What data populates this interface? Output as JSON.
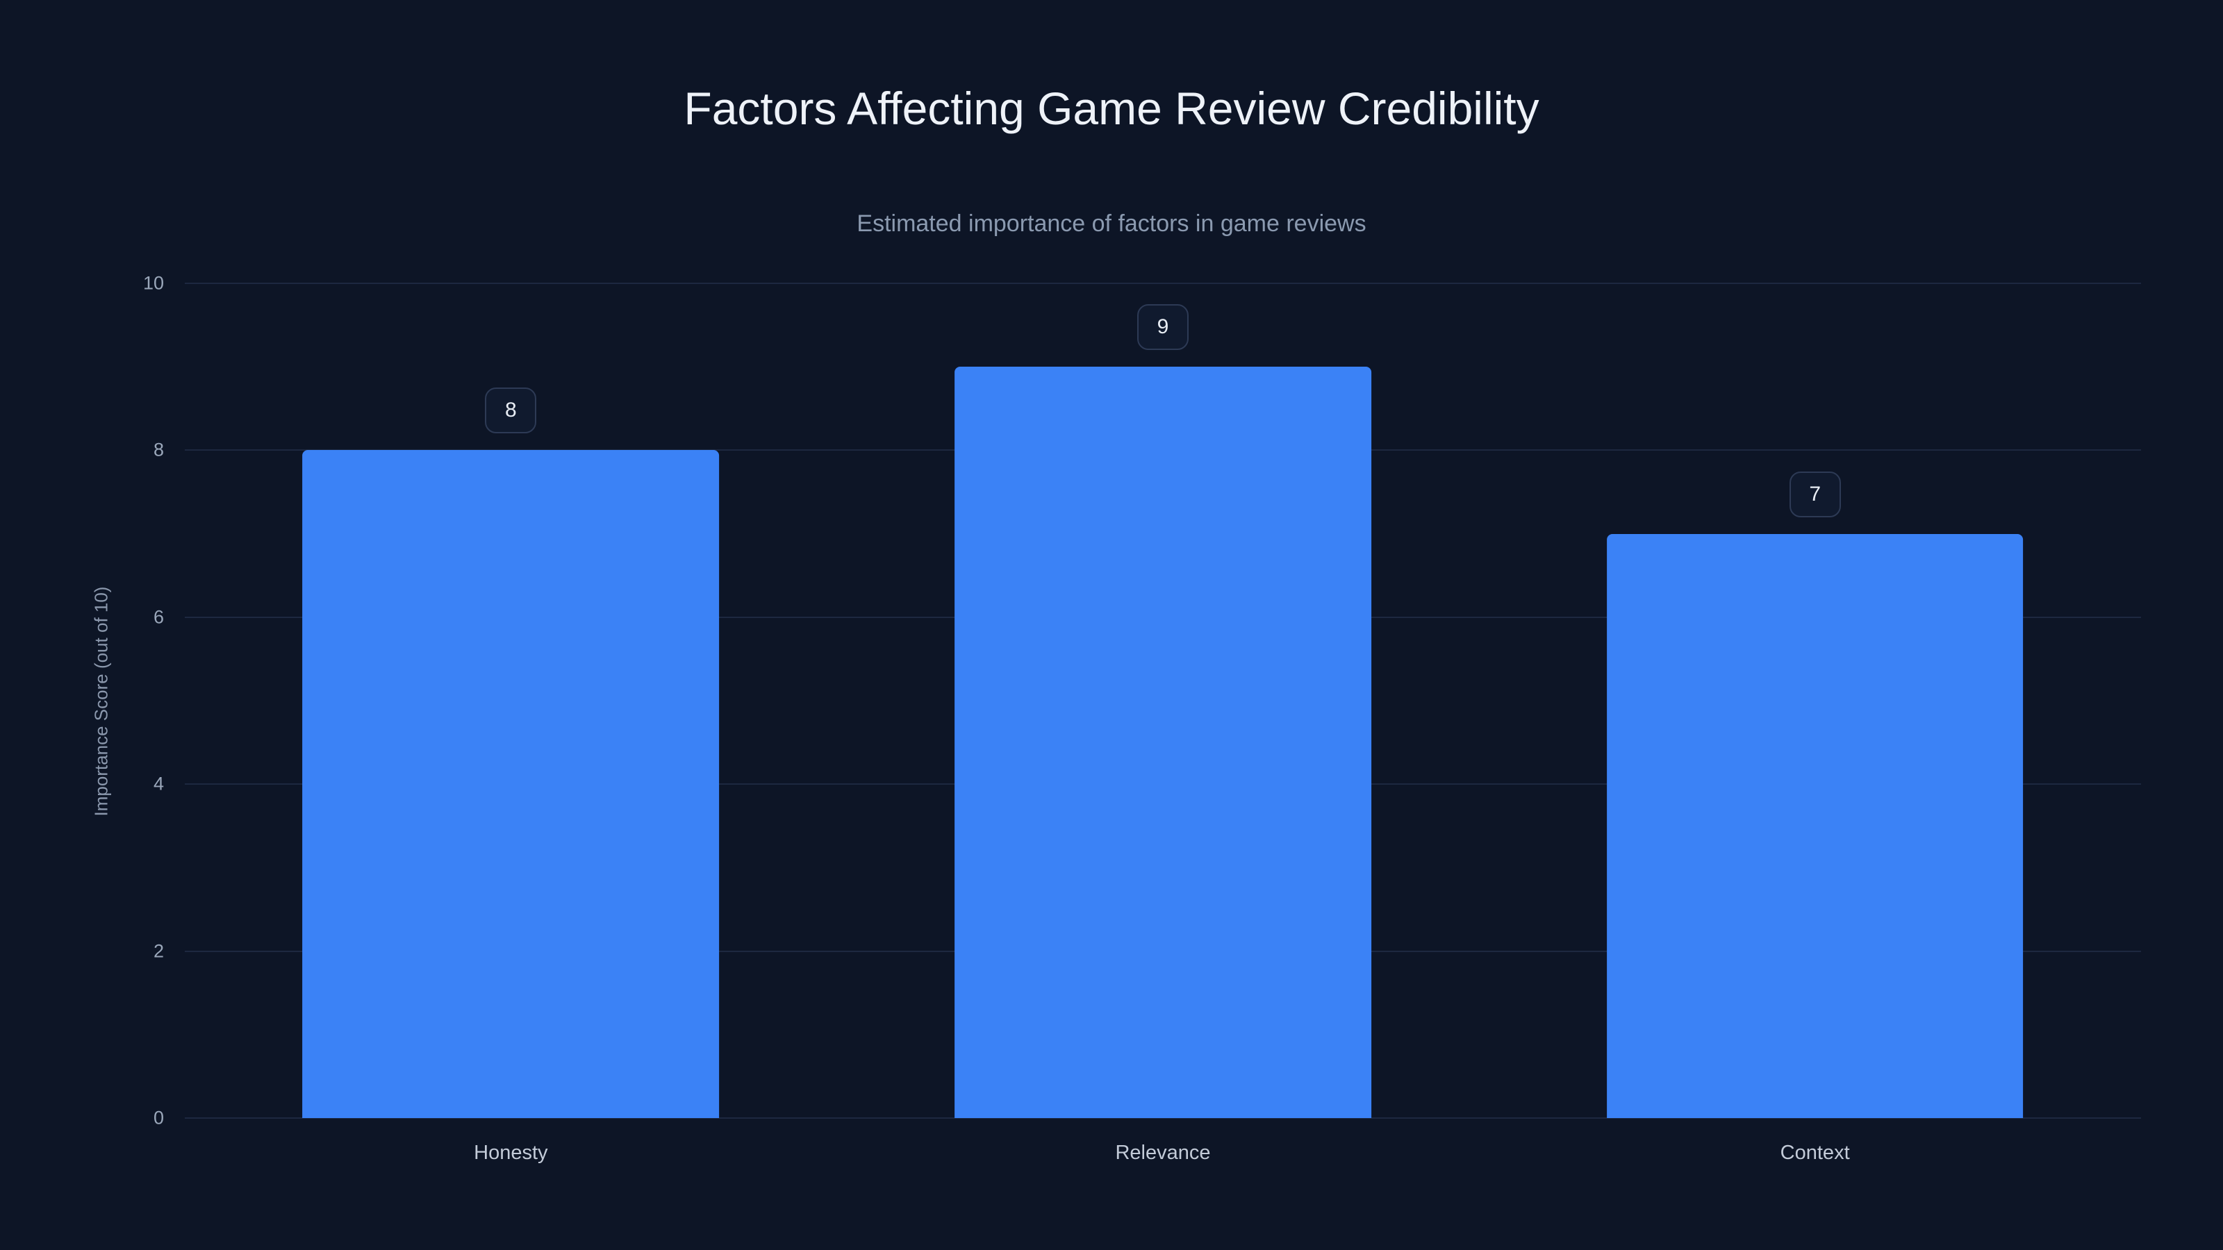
{
  "page": {
    "background_color": "#0d1526"
  },
  "colors": {
    "bar": "#3b82f6",
    "grid": "#1d2840",
    "title_text": "#eef2f8",
    "muted_text": "#8b9ab0",
    "tick_text": "#9aa7ba",
    "badge_border": "#2d3a55",
    "badge_background": "#101a2e"
  },
  "chart_data": {
    "type": "bar",
    "title": "Factors Affecting Game Review Credibility",
    "subtitle": "Estimated importance of factors in game reviews",
    "xlabel": "",
    "ylabel": "Importance Score (out of 10)",
    "categories": [
      "Honesty",
      "Relevance",
      "Context"
    ],
    "values": [
      8,
      9,
      7
    ],
    "value_labels": [
      "8",
      "9",
      "7"
    ],
    "ylim": [
      0,
      10
    ],
    "yticks": [
      0,
      2,
      4,
      6,
      8,
      10
    ],
    "grid": true,
    "legend": false,
    "bar_color": "#3b82f6"
  }
}
